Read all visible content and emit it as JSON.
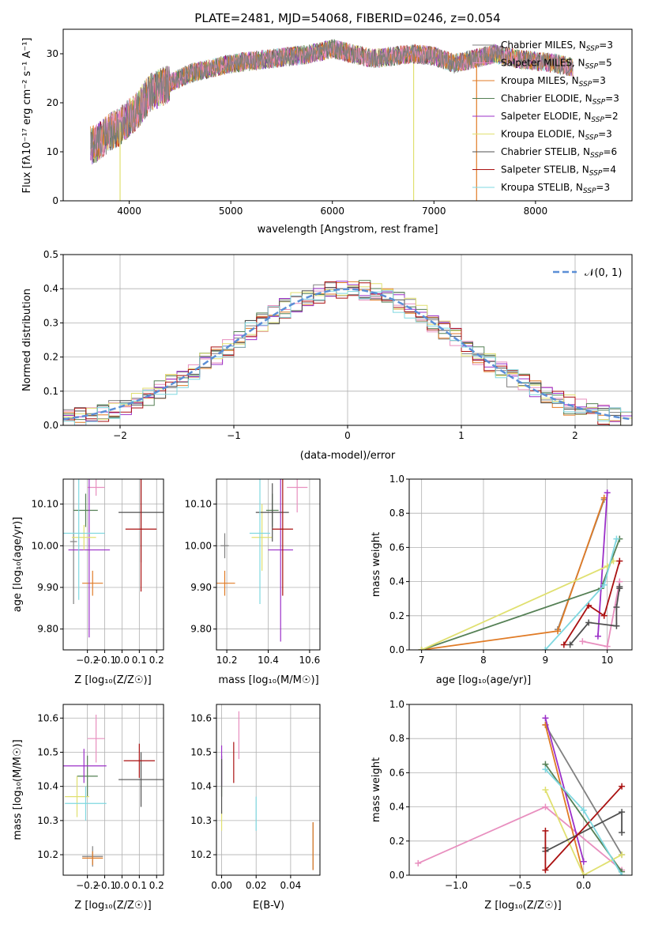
{
  "figure_title": "PLATE=2481, MJD=54068, FIBERID=0246, z=0.054",
  "series_names": [
    "Chabrier MILES, N$_{SSP}$=3",
    "Salpeter MILES, N$_{SSP}$=5",
    "Kroupa MILES, N$_{SSP}$=3",
    "Chabrier ELODIE, N$_{SSP}$=3",
    "Salpeter ELODIE, N$_{SSP}$=2",
    "Kroupa ELODIE, N$_{SSP}$=3",
    "Chabrier STELIB, N$_{SSP}$=6",
    "Salpeter STELIB, N$_{SSP}$=4",
    "Kroupa STELIB, N$_{SSP}$=3"
  ],
  "colors": [
    "#808080",
    "#e88fbf",
    "#e07b26",
    "#558055",
    "#9b30c8",
    "#e0e070",
    "#505050",
    "#aa1111",
    "#7fd8e0"
  ],
  "chart_data": [
    {
      "type": "line",
      "title": "PLATE=2481, MJD=54068, FIBERID=0246, z=0.054",
      "xlabel": "wavelength [Angstrom, rest frame]",
      "ylabel": "Flux [f_λ10^{-17} erg cm^{-2} s^{-1} A^{-1}]",
      "xlim": [
        3350,
        8950
      ],
      "ylim": [
        0,
        35
      ],
      "xticks": [
        4000,
        5000,
        6000,
        7000,
        8000
      ],
      "yticks": [
        0,
        10,
        20,
        30
      ],
      "legend": "right",
      "spectrum_envelope": {
        "x": [
          3600,
          3700,
          3800,
          3900,
          4000,
          4100,
          4200,
          4300,
          4400,
          4500,
          4600,
          4800,
          5000,
          5200,
          5400,
          5600,
          5800,
          6000,
          6200,
          6400,
          6600,
          6800,
          7000,
          7200,
          7400,
          7600,
          7800,
          8000,
          8200,
          8400
        ],
        "y": [
          11,
          12,
          14,
          15,
          17,
          19,
          22,
          23,
          24,
          25,
          26,
          27,
          28,
          28.5,
          29,
          29.5,
          30,
          31,
          30,
          29,
          29.5,
          30,
          29.5,
          28,
          29,
          30,
          29,
          28.5,
          28,
          27
        ]
      },
      "spectrum_range": [
        3620,
        8370
      ]
    },
    {
      "type": "bar",
      "subtype": "histogram",
      "xlabel": "(data-model)/error",
      "ylabel": "Normed distribution",
      "xlim": [
        -2.5,
        2.5
      ],
      "ylim": [
        0,
        0.5
      ],
      "xticks": [
        -2,
        -1,
        0,
        1,
        2
      ],
      "yticks": [
        0,
        0.1,
        0.2,
        0.3,
        0.4,
        0.5
      ],
      "legend": "top-right",
      "reference_curve": "$\\mathcal{N}(0,1)$",
      "bin_width": 0.1
    },
    {
      "type": "scatter",
      "subtype": "errorbar",
      "xlabel": "Z [log10(Z/Z☉)]",
      "ylabel": "age  [log10(age/yr)]",
      "xlim": [
        -0.34,
        0.24
      ],
      "ylim": [
        9.75,
        10.16
      ],
      "xticks": [
        -0.2,
        -0.1,
        0.0,
        0.1,
        0.2
      ],
      "yticks": [
        9.8,
        9.9,
        10.0,
        10.1
      ],
      "points": [
        {
          "x": -0.28,
          "y": 10.01,
          "xe": 0.02,
          "ye": 0.15
        },
        {
          "x": -0.15,
          "y": 10.14,
          "xe": 0.05,
          "ye": 0.02
        },
        {
          "x": -0.17,
          "y": 9.91,
          "xe": 0.06,
          "ye": 0.03
        },
        {
          "x": -0.21,
          "y": 10.085,
          "xe": 0.07,
          "ye": 0.04
        },
        {
          "x": -0.19,
          "y": 9.99,
          "xe": 0.12,
          "ye": 0.21
        },
        {
          "x": -0.22,
          "y": 10.02,
          "xe": 0.07,
          "ye": 0.03
        },
        {
          "x": 0.11,
          "y": 10.08,
          "xe": 0.13,
          "ye": 0.12
        },
        {
          "x": 0.11,
          "y": 10.04,
          "xe": 0.09,
          "ye": 0.15
        },
        {
          "x": -0.25,
          "y": 10.03,
          "xe": 0.15,
          "ye": 0.16
        }
      ]
    },
    {
      "type": "scatter",
      "subtype": "errorbar",
      "xlabel": "mass [log10(M/M☉)]",
      "ylabel": "",
      "xlim": [
        10.15,
        10.65
      ],
      "ylim": [
        9.75,
        10.16
      ],
      "xticks": [
        10.2,
        10.4,
        10.6
      ],
      "yticks": [
        9.8,
        9.9,
        10.0,
        10.1
      ],
      "points": [
        {
          "x": 10.19,
          "y": 10.0,
          "xe": 0.02,
          "ye": 0.03
        },
        {
          "x": 10.54,
          "y": 10.14,
          "xe": 0.05,
          "ye": 0.06
        },
        {
          "x": 10.19,
          "y": 9.91,
          "xe": 0.05,
          "ye": 0.03
        },
        {
          "x": 10.42,
          "y": 10.085,
          "xe": 0.03,
          "ye": 0.04
        },
        {
          "x": 10.46,
          "y": 9.99,
          "xe": 0.06,
          "ye": 0.22
        },
        {
          "x": 10.37,
          "y": 10.02,
          "xe": 0.05,
          "ye": 0.08
        },
        {
          "x": 10.42,
          "y": 10.08,
          "xe": 0.08,
          "ye": 0.07
        },
        {
          "x": 10.47,
          "y": 10.04,
          "xe": 0.05,
          "ye": 0.16
        },
        {
          "x": 10.36,
          "y": 10.03,
          "xe": 0.05,
          "ye": 0.17
        }
      ]
    },
    {
      "type": "line",
      "xlabel": "age  [log10(age/yr)]",
      "ylabel": "mass weight",
      "xlim": [
        6.8,
        10.4
      ],
      "ylim": [
        0,
        1.0
      ],
      "xticks": [
        7,
        8,
        9,
        10
      ],
      "yticks": [
        0,
        0.2,
        0.4,
        0.6,
        0.8,
        1.0
      ],
      "series": [
        {
          "x": [
            9.2,
            9.95
          ],
          "y": [
            0.12,
            0.88
          ]
        },
        {
          "x": [
            9.6,
            10.0,
            10.2
          ],
          "y": [
            0.05,
            0.02,
            0.4
          ]
        },
        {
          "x": [
            7.0,
            9.2,
            9.95
          ],
          "y": [
            0.0,
            0.11,
            0.89
          ]
        },
        {
          "x": [
            7.0,
            9.9,
            10.2
          ],
          "y": [
            0.0,
            0.36,
            0.65
          ]
        },
        {
          "x": [
            9.85,
            10.0
          ],
          "y": [
            0.08,
            0.92
          ]
        },
        {
          "x": [
            7.0,
            10.0,
            10.1
          ],
          "y": [
            0.0,
            0.49,
            0.52
          ]
        },
        {
          "x": [
            9.4,
            9.7,
            10.15,
            10.15,
            10.2,
            10.2
          ],
          "y": [
            0.03,
            0.16,
            0.14,
            0.25,
            0.37,
            0.36
          ]
        },
        {
          "x": [
            9.3,
            9.7,
            9.95,
            10.2
          ],
          "y": [
            0.03,
            0.26,
            0.2,
            0.52
          ]
        },
        {
          "x": [
            9.0,
            9.95,
            10.15
          ],
          "y": [
            0.0,
            0.38,
            0.65
          ]
        }
      ]
    },
    {
      "type": "scatter",
      "subtype": "errorbar",
      "xlabel": "Z [log10(Z/Z☉)]",
      "ylabel": "mass [log10(M/M☉)]",
      "xlim": [
        -0.34,
        0.24
      ],
      "ylim": [
        10.14,
        10.64
      ],
      "xticks": [
        -0.2,
        -0.1,
        0.0,
        0.1,
        0.2
      ],
      "yticks": [
        10.2,
        10.3,
        10.4,
        10.5,
        10.6
      ],
      "points": [
        {
          "x": -0.17,
          "y": 10.195,
          "xe": 0.06,
          "ye": 0.03
        },
        {
          "x": -0.15,
          "y": 10.54,
          "xe": 0.05,
          "ye": 0.07
        },
        {
          "x": -0.17,
          "y": 10.19,
          "xe": 0.06,
          "ye": 0.02
        },
        {
          "x": -0.2,
          "y": 10.43,
          "xe": 0.06,
          "ye": 0.06
        },
        {
          "x": -0.22,
          "y": 10.46,
          "xe": 0.13,
          "ye": 0.05
        },
        {
          "x": -0.26,
          "y": 10.37,
          "xe": 0.07,
          "ye": 0.06
        },
        {
          "x": 0.11,
          "y": 10.42,
          "xe": 0.13,
          "ye": 0.08
        },
        {
          "x": 0.1,
          "y": 10.475,
          "xe": 0.09,
          "ye": 0.05
        },
        {
          "x": -0.21,
          "y": 10.35,
          "xe": 0.12,
          "ye": 0.05
        }
      ]
    },
    {
      "type": "scatter",
      "subtype": "errorbar",
      "xlabel": "E(B-V)",
      "ylabel": "",
      "xlim": [
        -0.003,
        0.057
      ],
      "ylim": [
        10.14,
        10.64
      ],
      "xticks": [
        0.0,
        0.02,
        0.04
      ],
      "yticks": [
        10.2,
        10.3,
        10.4,
        10.5,
        10.6
      ],
      "points": [
        {
          "x": 0.053,
          "y": 10.225,
          "xe": 0.0,
          "ye": 0.07
        },
        {
          "x": 0.01,
          "y": 10.55,
          "xe": 0.0,
          "ye": 0.07
        },
        {
          "x": 0.053,
          "y": 10.225,
          "xe": 0.0,
          "ye": 0.07
        },
        {
          "x": 0.0,
          "y": 10.43,
          "xe": 0.0,
          "ye": 0.06
        },
        {
          "x": 0.0,
          "y": 10.46,
          "xe": 0.0,
          "ye": 0.06
        },
        {
          "x": 0.0,
          "y": 10.3,
          "xe": 0.0,
          "ye": 0.03
        },
        {
          "x": 0.0,
          "y": 10.4,
          "xe": 0.0,
          "ye": 0.08
        },
        {
          "x": 0.007,
          "y": 10.47,
          "xe": 0.0,
          "ye": 0.06
        },
        {
          "x": 0.02,
          "y": 10.32,
          "xe": 0.0,
          "ye": 0.05
        }
      ]
    },
    {
      "type": "line",
      "xlabel": "Z [log10(Z/Z☉)]",
      "ylabel": "mass weight",
      "xlim": [
        -1.37,
        0.38
      ],
      "ylim": [
        0,
        1.0
      ],
      "xticks": [
        -1.0,
        -0.5,
        0.0
      ],
      "yticks": [
        0,
        0.2,
        0.4,
        0.6,
        0.8,
        1.0
      ],
      "series": [
        {
          "x": [
            -0.3,
            0.3
          ],
          "y": [
            0.88,
            0.12
          ]
        },
        {
          "x": [
            -1.3,
            -0.3,
            0.3
          ],
          "y": [
            0.07,
            0.4,
            0.03
          ]
        },
        {
          "x": [
            -0.3,
            0.0
          ],
          "y": [
            0.88,
            0.0
          ]
        },
        {
          "x": [
            -0.3,
            0.3
          ],
          "y": [
            0.65,
            0.02
          ]
        },
        {
          "x": [
            -0.3,
            0.0
          ],
          "y": [
            0.92,
            0.08
          ]
        },
        {
          "x": [
            -0.3,
            0.0,
            0.3
          ],
          "y": [
            0.5,
            0.0,
            0.12
          ]
        },
        {
          "x": [
            -0.3,
            -0.3,
            0.3,
            0.3
          ],
          "y": [
            0.16,
            0.14,
            0.37,
            0.25
          ]
        },
        {
          "x": [
            -0.3,
            -0.3,
            0.3
          ],
          "y": [
            0.26,
            0.03,
            0.52
          ]
        },
        {
          "x": [
            -0.3,
            0.0,
            0.3
          ],
          "y": [
            0.62,
            0.38,
            0.0
          ]
        }
      ]
    }
  ]
}
